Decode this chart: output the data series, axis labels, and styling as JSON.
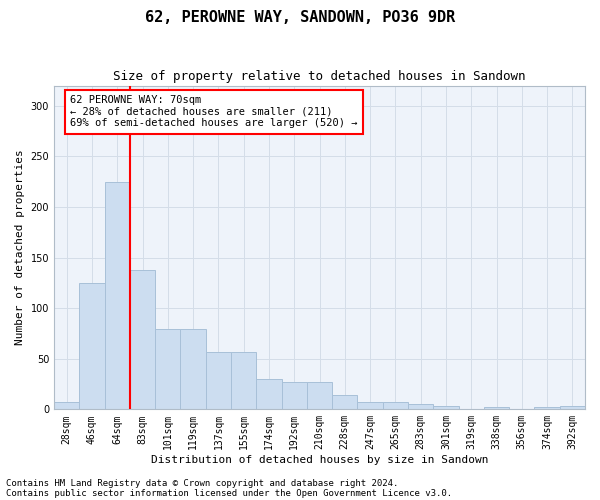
{
  "title": "62, PEROWNE WAY, SANDOWN, PO36 9DR",
  "subtitle": "Size of property relative to detached houses in Sandown",
  "xlabel": "Distribution of detached houses by size in Sandown",
  "ylabel": "Number of detached properties",
  "categories": [
    "28sqm",
    "46sqm",
    "64sqm",
    "83sqm",
    "101sqm",
    "119sqm",
    "137sqm",
    "155sqm",
    "174sqm",
    "192sqm",
    "210sqm",
    "228sqm",
    "247sqm",
    "265sqm",
    "283sqm",
    "301sqm",
    "319sqm",
    "338sqm",
    "356sqm",
    "374sqm",
    "392sqm"
  ],
  "values": [
    7,
    125,
    225,
    138,
    79,
    79,
    57,
    57,
    30,
    27,
    27,
    14,
    7,
    7,
    5,
    3,
    0,
    2,
    0,
    2,
    3
  ],
  "bar_color": "#ccddf0",
  "bar_edge_color": "#a8c0d8",
  "redline_x": 2.5,
  "annotation_line1": "62 PEROWNE WAY: 70sqm",
  "annotation_line2": "← 28% of detached houses are smaller (211)",
  "annotation_line3": "69% of semi-detached houses are larger (520) →",
  "annotation_box_color": "white",
  "annotation_box_edge": "red",
  "redline_color": "red",
  "ylim": [
    0,
    320
  ],
  "yticks": [
    0,
    50,
    100,
    150,
    200,
    250,
    300
  ],
  "footnote1": "Contains HM Land Registry data © Crown copyright and database right 2024.",
  "footnote2": "Contains public sector information licensed under the Open Government Licence v3.0.",
  "grid_color": "#d4dde8",
  "bg_color": "#eef3fa",
  "title_fontsize": 11,
  "subtitle_fontsize": 9,
  "axis_label_fontsize": 8,
  "tick_fontsize": 7,
  "annotation_fontsize": 7.5,
  "footnote_fontsize": 6.5
}
